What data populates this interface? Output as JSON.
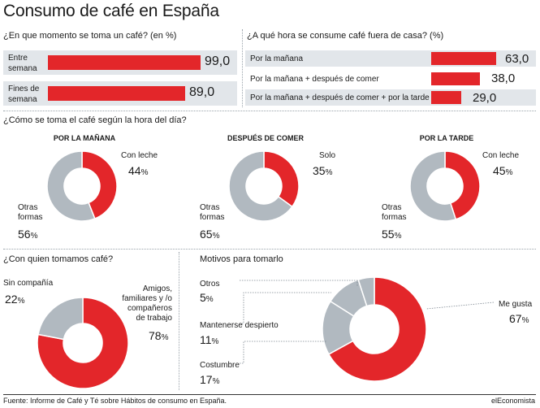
{
  "title": "Consumo de café en España",
  "colors": {
    "red": "#e3262a",
    "grey": "#b1b9c0",
    "rowbg": "#e2e6ea",
    "line": "#7d8790"
  },
  "chart_data": [
    {
      "type": "bar",
      "title": "¿En que momento se toma un café? (en %)",
      "categories": [
        "Entre semana",
        "Fines de semana"
      ],
      "values": [
        99.0,
        89.0
      ],
      "value_labels": [
        "99,0",
        "89,0"
      ]
    },
    {
      "type": "bar",
      "title": "¿A qué hora se consume café fuera de casa? (%)",
      "categories": [
        "Por la mañana",
        "Por la mañana + después de comer",
        "Por la mañana + después de comer + por la tarde"
      ],
      "values": [
        63.0,
        38.0,
        29.0
      ],
      "value_labels": [
        "63,0",
        "38,0",
        "29,0"
      ]
    },
    {
      "type": "pie",
      "title": "¿Cómo se toma el café según la hora del día?",
      "charts": [
        {
          "subtitle": "POR LA MAÑANA",
          "slices": [
            {
              "label": "Con leche",
              "value": 44
            },
            {
              "label": "Otras formas",
              "value": 56
            }
          ]
        },
        {
          "subtitle": "DESPUÉS DE COMER",
          "slices": [
            {
              "label": "Solo",
              "value": 35
            },
            {
              "label": "Otras formas",
              "value": 65
            }
          ]
        },
        {
          "subtitle": "POR LA TARDE",
          "slices": [
            {
              "label": "Con leche",
              "value": 45
            },
            {
              "label": "Otras formas",
              "value": 55
            }
          ]
        }
      ]
    },
    {
      "type": "pie",
      "title": "¿Con quien tomamos café?",
      "slices": [
        {
          "label": "Sin compañía",
          "value": 22
        },
        {
          "label": "Amigos, familiares y /o compañeros de trabajo",
          "value": 78
        }
      ]
    },
    {
      "type": "pie",
      "title": "Motivos para tomarlo",
      "slices": [
        {
          "label": "Me gusta",
          "value": 67
        },
        {
          "label": "Costumbre",
          "value": 17
        },
        {
          "label": "Mantenerse despierto",
          "value": 11
        },
        {
          "label": "Otros",
          "value": 5
        }
      ]
    }
  ],
  "text": {
    "entre1": "Entre",
    "entre2": "semana",
    "fines1": "Fines de",
    "fines2": "semana",
    "pm": "POR LA MAÑANA",
    "dc": "DESPUÉS DE COMER",
    "pt": "POR LA TARDE",
    "d1a": "Con leche",
    "d1b1": "Otras",
    "d1b2": "formas",
    "d2a": "Solo",
    "d2b1": "Otras",
    "d2b2": "formas",
    "d3a": "Con leche",
    "d3b1": "Otras",
    "d3b2": "formas",
    "sin": "Sin compañía",
    "am1": "Amigos,",
    "am2": "familiares y /o",
    "am3": "compañeros",
    "am4": "de trabajo",
    "m_otros": "Otros",
    "m_mant": "Mantenerse despierto",
    "m_cost": "Costumbre",
    "m_gusta": "Me gusta",
    "pct_sign": "%"
  },
  "footer": {
    "source": "Fuente: Informe de Café y Té sobre Hábitos de consumo en España.",
    "brand": "elEconomista"
  }
}
